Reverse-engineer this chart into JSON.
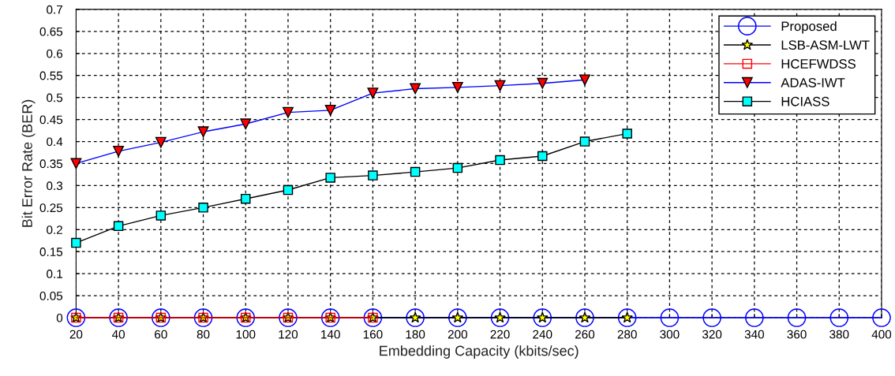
{
  "chart_data": {
    "type": "line",
    "xlabel": "Embedding Capacity (kbits/sec)",
    "ylabel": "Bit Error Rate (BER)",
    "xlim": [
      20,
      400
    ],
    "xticks": [
      20,
      40,
      60,
      80,
      100,
      120,
      140,
      160,
      180,
      200,
      220,
      240,
      260,
      280,
      300,
      320,
      340,
      360,
      380,
      400
    ],
    "ylim": [
      0,
      0.7
    ],
    "yticks": [
      0,
      0.05,
      0.1,
      0.15,
      0.2,
      0.25,
      0.3,
      0.35,
      0.4,
      0.45,
      0.5,
      0.55,
      0.6,
      0.65,
      0.7
    ],
    "grid": true,
    "legend": "top right",
    "line_style": "solid",
    "series": [
      {
        "name": "Proposed",
        "color": "#0000ff",
        "marker": "circle",
        "x": [
          20,
          40,
          60,
          80,
          100,
          120,
          140,
          160,
          180,
          200,
          220,
          240,
          260,
          280,
          300,
          320,
          340,
          360,
          380,
          400
        ],
        "values": [
          0,
          0,
          0,
          0,
          0,
          0,
          0,
          0,
          0,
          0,
          0,
          0,
          0,
          0,
          0,
          0,
          0,
          0,
          0,
          0
        ]
      },
      {
        "name": "LSB-ASM-LWT",
        "color": "#000000",
        "marker": "star",
        "x": [
          20,
          40,
          60,
          80,
          100,
          120,
          140,
          160,
          180,
          200,
          220,
          240,
          260,
          280
        ],
        "values": [
          0,
          0,
          0,
          0,
          0,
          0,
          0,
          0,
          0,
          0,
          0,
          0,
          0,
          0
        ]
      },
      {
        "name": "HCEFWDSS",
        "color": "#ff0000",
        "marker": "square",
        "x": [
          20,
          40,
          60,
          80,
          100,
          120,
          140,
          160
        ],
        "values": [
          0,
          0,
          0,
          0,
          0,
          0,
          0,
          0
        ]
      },
      {
        "name": "ADAS-IWT",
        "color": "#0000ff",
        "marker": "triangle",
        "x": [
          20,
          40,
          60,
          80,
          100,
          120,
          140,
          160,
          180,
          200,
          220,
          240,
          260
        ],
        "values": [
          0.35,
          0.378,
          0.398,
          0.422,
          0.44,
          0.466,
          0.471,
          0.51,
          0.52,
          0.523,
          0.527,
          0.532,
          0.54
        ]
      },
      {
        "name": "HCIASS",
        "color": "#000000",
        "marker": "square",
        "x": [
          20,
          40,
          60,
          80,
          100,
          120,
          140,
          160,
          180,
          200,
          220,
          240,
          260,
          280
        ],
        "values": [
          0.17,
          0.208,
          0.232,
          0.25,
          0.27,
          0.29,
          0.318,
          0.323,
          0.331,
          0.34,
          0.358,
          0.367,
          0.4,
          0.418
        ]
      }
    ]
  }
}
